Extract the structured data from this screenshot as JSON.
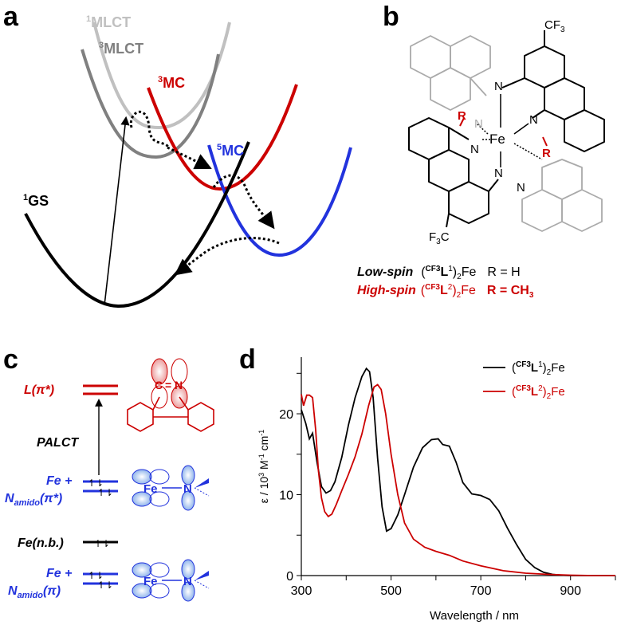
{
  "panels": {
    "a": "a",
    "b": "b",
    "c": "c",
    "d": "d"
  },
  "panel_a": {
    "states": [
      {
        "sup": "1",
        "name": "MLCT",
        "color": "#c0c0c0"
      },
      {
        "sup": "3",
        "name": "MLCT",
        "color": "#808080"
      },
      {
        "sup": "3",
        "name": "MC",
        "color": "#cc0000"
      },
      {
        "sup": "5",
        "name": "MC",
        "color": "#2233dd"
      },
      {
        "sup": "1",
        "name": "GS",
        "color": "#000000"
      }
    ]
  },
  "panel_b": {
    "atoms": {
      "fe": "Fe",
      "n": "N",
      "r": "R",
      "cf3": "CF",
      "cf3_sub": "3",
      "f3c": "F",
      "f3c_sub": "3",
      "f3c_c": "C"
    },
    "legend": [
      {
        "spin": "Low-spin",
        "pre": "(",
        "sup": "CF3",
        "lig": "L",
        "lsup": "1",
        "post": ")",
        "sub": "2",
        "metal": "Fe",
        "r": "R = H",
        "color": "#000000"
      },
      {
        "spin": "High-spin",
        "pre": "(",
        "sup": "CF3",
        "lig": "L",
        "lsup": "2",
        "post": ")",
        "sub": "2",
        "metal": "Fe",
        "r": "R = CH",
        "r_sub": "3",
        "color": "#cc0000"
      }
    ]
  },
  "panel_c": {
    "levels": {
      "l_pi": "L(π*)",
      "fe_npi_star_1": "Fe +",
      "fe_npi_star_2_main": "N",
      "fe_npi_star_2_sub": "amido",
      "fe_npi_star_2_paren": "(π*)",
      "fe_nb": "Fe(n.b.)",
      "fe_npi_1": "Fe +",
      "fe_npi_2_main": "N",
      "fe_npi_2_sub": "amido",
      "fe_npi_2_paren": "(π)"
    },
    "transition": "PALCT",
    "orbital_labels": {
      "fe": "Fe",
      "n": "N",
      "c": "C",
      "eq": "=",
      "n2": "N"
    },
    "colors": {
      "ligand": "#cc0000",
      "metal": "#2233dd"
    }
  },
  "chart_data": {
    "type": "line",
    "xlabel": "Wavelength / nm",
    "ylabel": "ε / 10³ M⁻¹ cm⁻¹",
    "ylabel_parts": {
      "main": "ε / 10",
      "s1": "3",
      "mid": " M",
      "s2": "-1",
      "mid2": " cm",
      "s3": "-1"
    },
    "xlim": [
      300,
      1000
    ],
    "ylim": [
      0,
      27
    ],
    "xticks": [
      300,
      500,
      700,
      900
    ],
    "yticks": [
      0,
      10,
      20
    ],
    "legend_position": "top-right",
    "series": [
      {
        "name": "(CF3L1)2Fe",
        "legend": {
          "pre": "(",
          "sup": "CF3",
          "lig": "L",
          "lsup": "1",
          "post": ")",
          "sub": "2",
          "metal": "Fe"
        },
        "color": "#000000",
        "x": [
          300,
          310,
          318,
          325,
          335,
          345,
          355,
          365,
          375,
          390,
          405,
          420,
          435,
          445,
          452,
          460,
          470,
          480,
          490,
          500,
          515,
          530,
          550,
          570,
          590,
          605,
          615,
          630,
          645,
          660,
          680,
          700,
          720,
          740,
          760,
          780,
          800,
          820,
          840,
          860,
          880,
          900,
          950,
          1000
        ],
        "y": [
          20.5,
          18.8,
          16.9,
          17.6,
          14.0,
          11.0,
          10.2,
          10.5,
          11.6,
          14.6,
          18.6,
          22.0,
          24.6,
          25.6,
          25.2,
          22.0,
          14.5,
          8.5,
          5.5,
          5.8,
          7.5,
          10.0,
          13.4,
          15.8,
          16.8,
          16.9,
          16.2,
          16.0,
          14.0,
          11.5,
          10.1,
          9.9,
          9.4,
          8.0,
          5.8,
          3.8,
          2.0,
          1.0,
          0.4,
          0.15,
          0.05,
          0.0,
          0.0,
          0.0
        ]
      },
      {
        "name": "(CF3L2)2Fe",
        "legend": {
          "pre": "(",
          "sup": "CF3",
          "lig": "L",
          "lsup": "2",
          "post": ")",
          "sub": "2",
          "metal": "Fe"
        },
        "color": "#cc0000",
        "x": [
          300,
          305,
          312,
          318,
          325,
          332,
          338,
          345,
          352,
          360,
          368,
          378,
          390,
          405,
          420,
          435,
          450,
          462,
          470,
          478,
          488,
          500,
          515,
          530,
          550,
          575,
          600,
          630,
          660,
          700,
          750,
          800,
          850,
          900,
          950,
          1000
        ],
        "y": [
          22.4,
          21.0,
          22.3,
          22.3,
          22.0,
          18.0,
          13.0,
          9.6,
          7.9,
          7.3,
          7.6,
          8.8,
          10.5,
          12.5,
          14.7,
          17.5,
          21.0,
          23.3,
          23.6,
          23.0,
          20.0,
          15.0,
          10.0,
          6.5,
          4.5,
          3.5,
          3.0,
          2.5,
          1.8,
          1.2,
          0.6,
          0.3,
          0.15,
          0.05,
          0.0,
          0.0
        ]
      }
    ]
  }
}
